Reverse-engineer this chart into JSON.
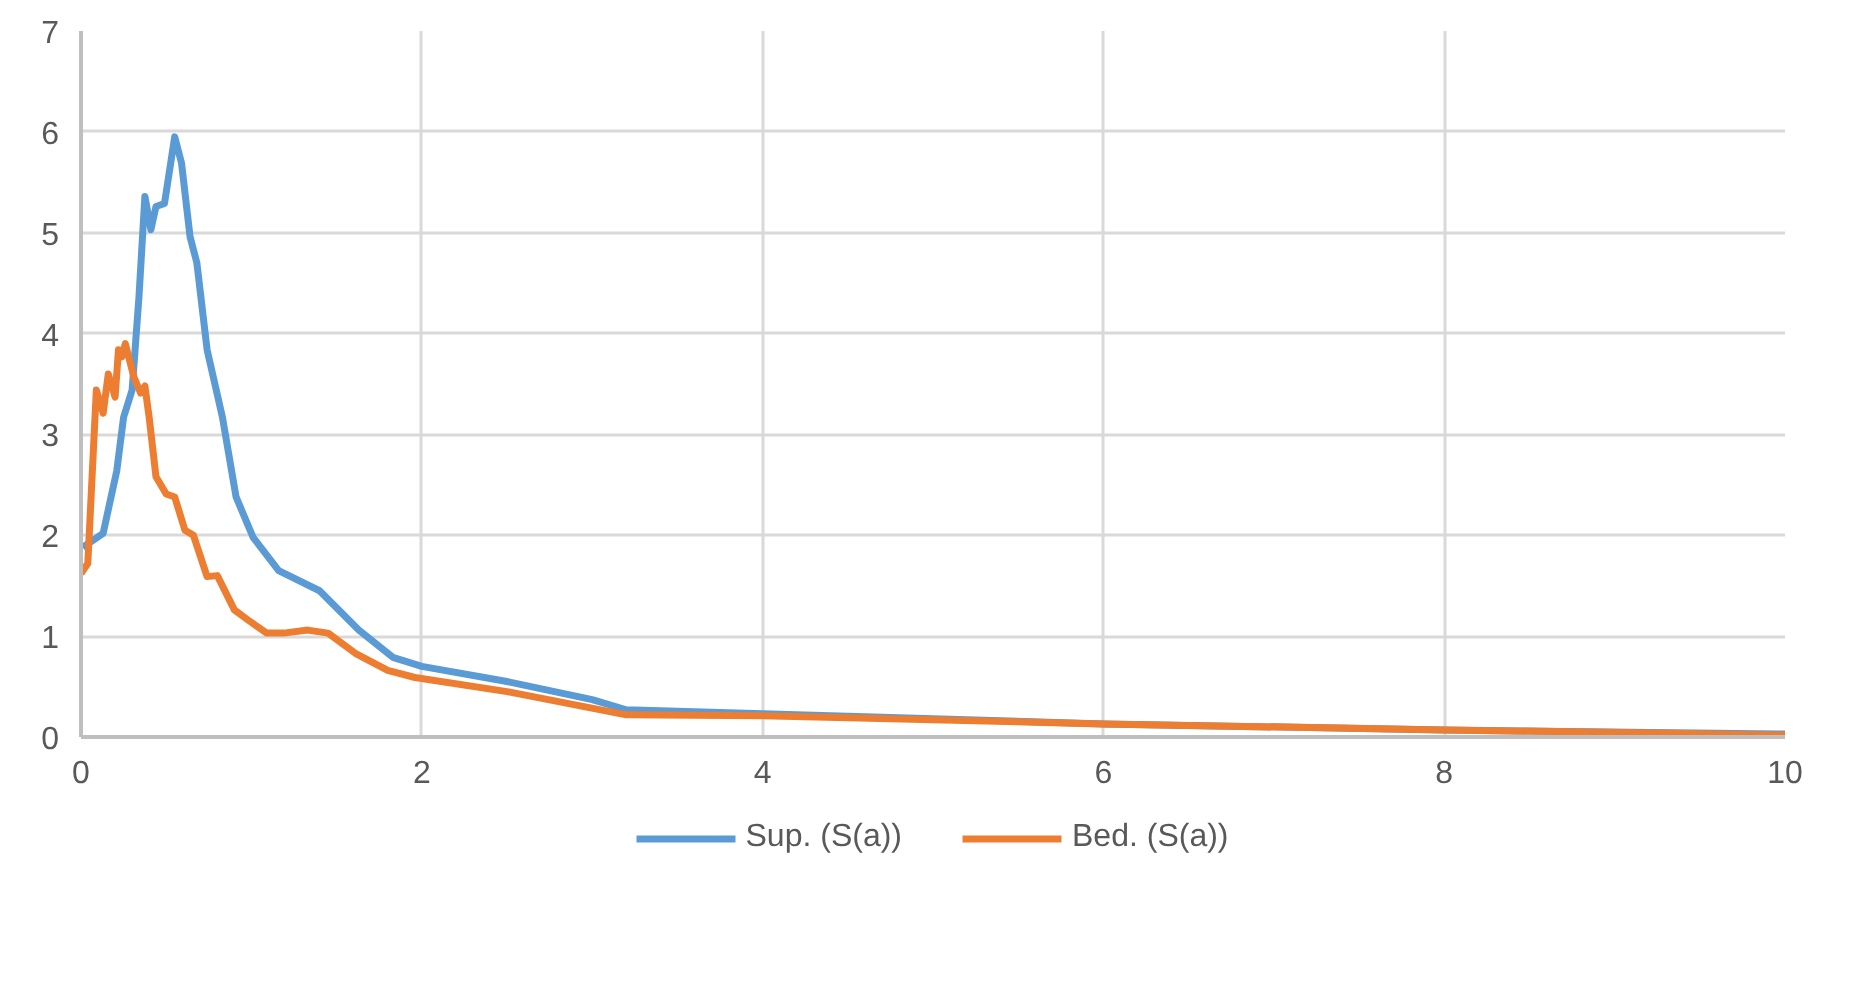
{
  "chart_data": {
    "type": "line",
    "xlim": [
      0,
      10
    ],
    "ylim": [
      0,
      7
    ],
    "xticks": [
      0,
      2,
      4,
      6,
      8,
      10
    ],
    "yticks": [
      0,
      1,
      2,
      3,
      4,
      5,
      6,
      7
    ],
    "grid": true,
    "legend": "bottom",
    "marker": "none",
    "line_style": "solid",
    "series": [
      {
        "name": "Sup. (S(a))",
        "color": "#5b9bd5",
        "x": [
          0.01,
          0.13,
          0.21,
          0.25,
          0.3,
          0.34,
          0.375,
          0.41,
          0.44,
          0.49,
          0.55,
          0.59,
          0.64,
          0.68,
          0.74,
          0.83,
          0.91,
          1.01,
          1.16,
          1.4,
          1.63,
          1.83,
          2,
          2.5,
          3,
          3.2,
          4,
          6,
          8,
          10
        ],
        "values": [
          1.88,
          2.02,
          2.64,
          3.17,
          3.44,
          4.36,
          5.36,
          5.03,
          5.26,
          5.29,
          5.95,
          5.69,
          4.96,
          4.7,
          3.84,
          3.17,
          2.38,
          1.98,
          1.65,
          1.45,
          1.06,
          0.79,
          0.7,
          0.55,
          0.37,
          0.27,
          0.23,
          0.13,
          0.07,
          0.03
        ]
      },
      {
        "name": "Bed. (S(a))",
        "color": "#ed7d31",
        "x": [
          0,
          0.04,
          0.09,
          0.13,
          0.16,
          0.2,
          0.22,
          0.24,
          0.26,
          0.31,
          0.35,
          0.375,
          0.4,
          0.44,
          0.5,
          0.55,
          0.61,
          0.66,
          0.74,
          0.8,
          0.9,
          0.98,
          1.09,
          1.19,
          1.33,
          1.45,
          1.61,
          1.8,
          1.96,
          2.5,
          3.2,
          4,
          6,
          8,
          10
        ],
        "values": [
          1.62,
          1.72,
          3.44,
          3.21,
          3.6,
          3.37,
          3.84,
          3.77,
          3.9,
          3.57,
          3.41,
          3.48,
          3.17,
          2.58,
          2.41,
          2.38,
          2.05,
          2.0,
          1.59,
          1.6,
          1.26,
          1.16,
          1.03,
          1.03,
          1.06,
          1.03,
          0.83,
          0.66,
          0.59,
          0.45,
          0.22,
          0.21,
          0.13,
          0.07,
          0.02
        ]
      }
    ]
  }
}
